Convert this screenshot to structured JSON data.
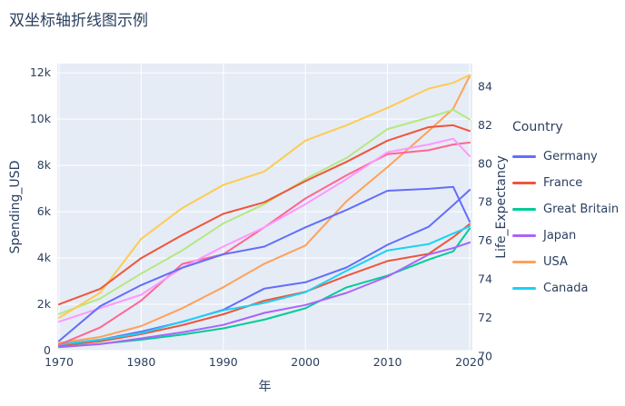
{
  "title": "双坐标轴折线图示例",
  "colors": {
    "text": "#2a3f5f",
    "plot_bg": "#E5ECF6",
    "grid": "#FFFFFF"
  },
  "legend": {
    "title": "Country",
    "items": [
      {
        "label": "Germany",
        "color": "#636EFA"
      },
      {
        "label": "France",
        "color": "#EF553B"
      },
      {
        "label": "Great Britain",
        "color": "#00CC96"
      },
      {
        "label": "Japan",
        "color": "#AB63FA"
      },
      {
        "label": "USA",
        "color": "#FFA15A"
      },
      {
        "label": "Canada",
        "color": "#19D3F3"
      }
    ]
  },
  "chart_data": {
    "type": "line",
    "title": "双坐标轴折线图示例",
    "x_label": "年",
    "y_left_label": "Spending_USD",
    "y_right_label": "Life_Expectancy",
    "legend_title": "Country",
    "legend_position": "right",
    "grid": true,
    "x_range": [
      1970,
      2020
    ],
    "y_left_range": [
      0,
      12400
    ],
    "y_right_range": [
      70.3,
      85.2
    ],
    "x_ticks": [
      1970,
      1980,
      1990,
      2000,
      2010,
      2020
    ],
    "x_tick_labels": [
      "1970",
      "1980",
      "1990",
      "2000",
      "2010",
      "2020"
    ],
    "y_left_ticks": [
      0,
      2000,
      4000,
      6000,
      8000,
      10000,
      12000
    ],
    "y_left_tick_labels": [
      "0",
      "2k",
      "4k",
      "6k",
      "8k",
      "10k",
      "12k"
    ],
    "y_right_ticks": [
      70,
      72,
      74,
      76,
      78,
      80,
      82,
      84
    ],
    "y_right_tick_labels": [
      "70",
      "72",
      "74",
      "76",
      "78",
      "80",
      "82",
      "84"
    ],
    "x": [
      1970,
      1975,
      1980,
      1985,
      1990,
      1995,
      2000,
      2005,
      2010,
      2015,
      2018,
      2020
    ],
    "series": [
      {
        "name": "Germany Spending_USD",
        "country": "Germany",
        "metric": "Spending_USD",
        "axis": "left",
        "color": "#636EFA",
        "values": [
          270,
          470,
          820,
          1240,
          1760,
          2680,
          2950,
          3590,
          4570,
          5350,
          6290,
          6940
        ]
      },
      {
        "name": "France Spending_USD",
        "country": "France",
        "metric": "Spending_USD",
        "axis": "left",
        "color": "#EF553B",
        "values": [
          210,
          400,
          710,
          1100,
          1570,
          2160,
          2540,
          3230,
          3870,
          4180,
          4900,
          5470
        ]
      },
      {
        "name": "Great Britain Spending_USD",
        "country": "Great Britain",
        "metric": "Spending_USD",
        "axis": "left",
        "color": "#00CC96",
        "values": [
          160,
          290,
          470,
          690,
          960,
          1340,
          1830,
          2730,
          3240,
          3930,
          4290,
          5270
        ]
      },
      {
        "name": "Japan Spending_USD",
        "country": "Japan",
        "metric": "Spending_USD",
        "axis": "left",
        "color": "#AB63FA",
        "values": [
          150,
          280,
          530,
          790,
          1110,
          1630,
          1970,
          2490,
          3200,
          4150,
          4430,
          4670
        ]
      },
      {
        "name": "USA Spending_USD",
        "country": "USA",
        "metric": "Spending_USD",
        "axis": "left",
        "color": "#FFA15A",
        "values": [
          330,
          590,
          1060,
          1830,
          2740,
          3750,
          4540,
          6450,
          7930,
          9490,
          10450,
          11860
        ]
      },
      {
        "name": "Canada Spending_USD",
        "country": "Canada",
        "metric": "Spending_USD",
        "axis": "left",
        "color": "#19D3F3",
        "values": [
          260,
          470,
          750,
          1250,
          1740,
          2060,
          2520,
          3450,
          4330,
          4600,
          5060,
          5370
        ]
      },
      {
        "name": "Germany Life_Expectancy",
        "country": "Germany",
        "metric": "Life_Expectancy",
        "axis": "right",
        "color": "#FF6692",
        "values": [
          70.6,
          71.5,
          72.9,
          74.8,
          75.3,
          76.7,
          78.2,
          79.4,
          80.5,
          80.7,
          81.0,
          81.1
        ]
      },
      {
        "name": "France Life_Expectancy",
        "country": "France",
        "metric": "Life_Expectancy",
        "axis": "right",
        "color": "#B6E880",
        "values": [
          72.2,
          73.0,
          74.3,
          75.5,
          76.9,
          77.9,
          79.2,
          80.3,
          81.8,
          82.4,
          82.8,
          82.3
        ]
      },
      {
        "name": "Great Britain Life_Expectancy",
        "country": "Great Britain",
        "metric": "Life_Expectancy",
        "axis": "right",
        "color": "#FF97FF",
        "values": [
          71.8,
          72.5,
          73.2,
          74.6,
          75.7,
          76.7,
          77.9,
          79.2,
          80.6,
          81.0,
          81.3,
          80.4
        ]
      },
      {
        "name": "Japan Life_Expectancy",
        "country": "Japan",
        "metric": "Life_Expectancy",
        "axis": "right",
        "color": "#FECB52",
        "values": [
          72.0,
          73.3,
          76.1,
          77.7,
          78.9,
          79.6,
          81.2,
          82.0,
          82.9,
          83.9,
          84.2,
          84.6
        ]
      },
      {
        "name": "USA Life_Expectancy",
        "country": "USA",
        "metric": "Life_Expectancy",
        "axis": "right",
        "color": "#636EFA",
        "values": [
          70.8,
          72.6,
          73.7,
          74.6,
          75.3,
          75.7,
          76.7,
          77.6,
          78.6,
          78.7,
          78.8,
          77.0
        ]
      },
      {
        "name": "Canada Life_Expectancy",
        "country": "Canada",
        "metric": "Life_Expectancy",
        "axis": "right",
        "color": "#EF553B",
        "values": [
          72.7,
          73.5,
          75.1,
          76.3,
          77.4,
          78.0,
          79.1,
          80.1,
          81.2,
          81.9,
          82.0,
          81.7
        ]
      }
    ]
  }
}
